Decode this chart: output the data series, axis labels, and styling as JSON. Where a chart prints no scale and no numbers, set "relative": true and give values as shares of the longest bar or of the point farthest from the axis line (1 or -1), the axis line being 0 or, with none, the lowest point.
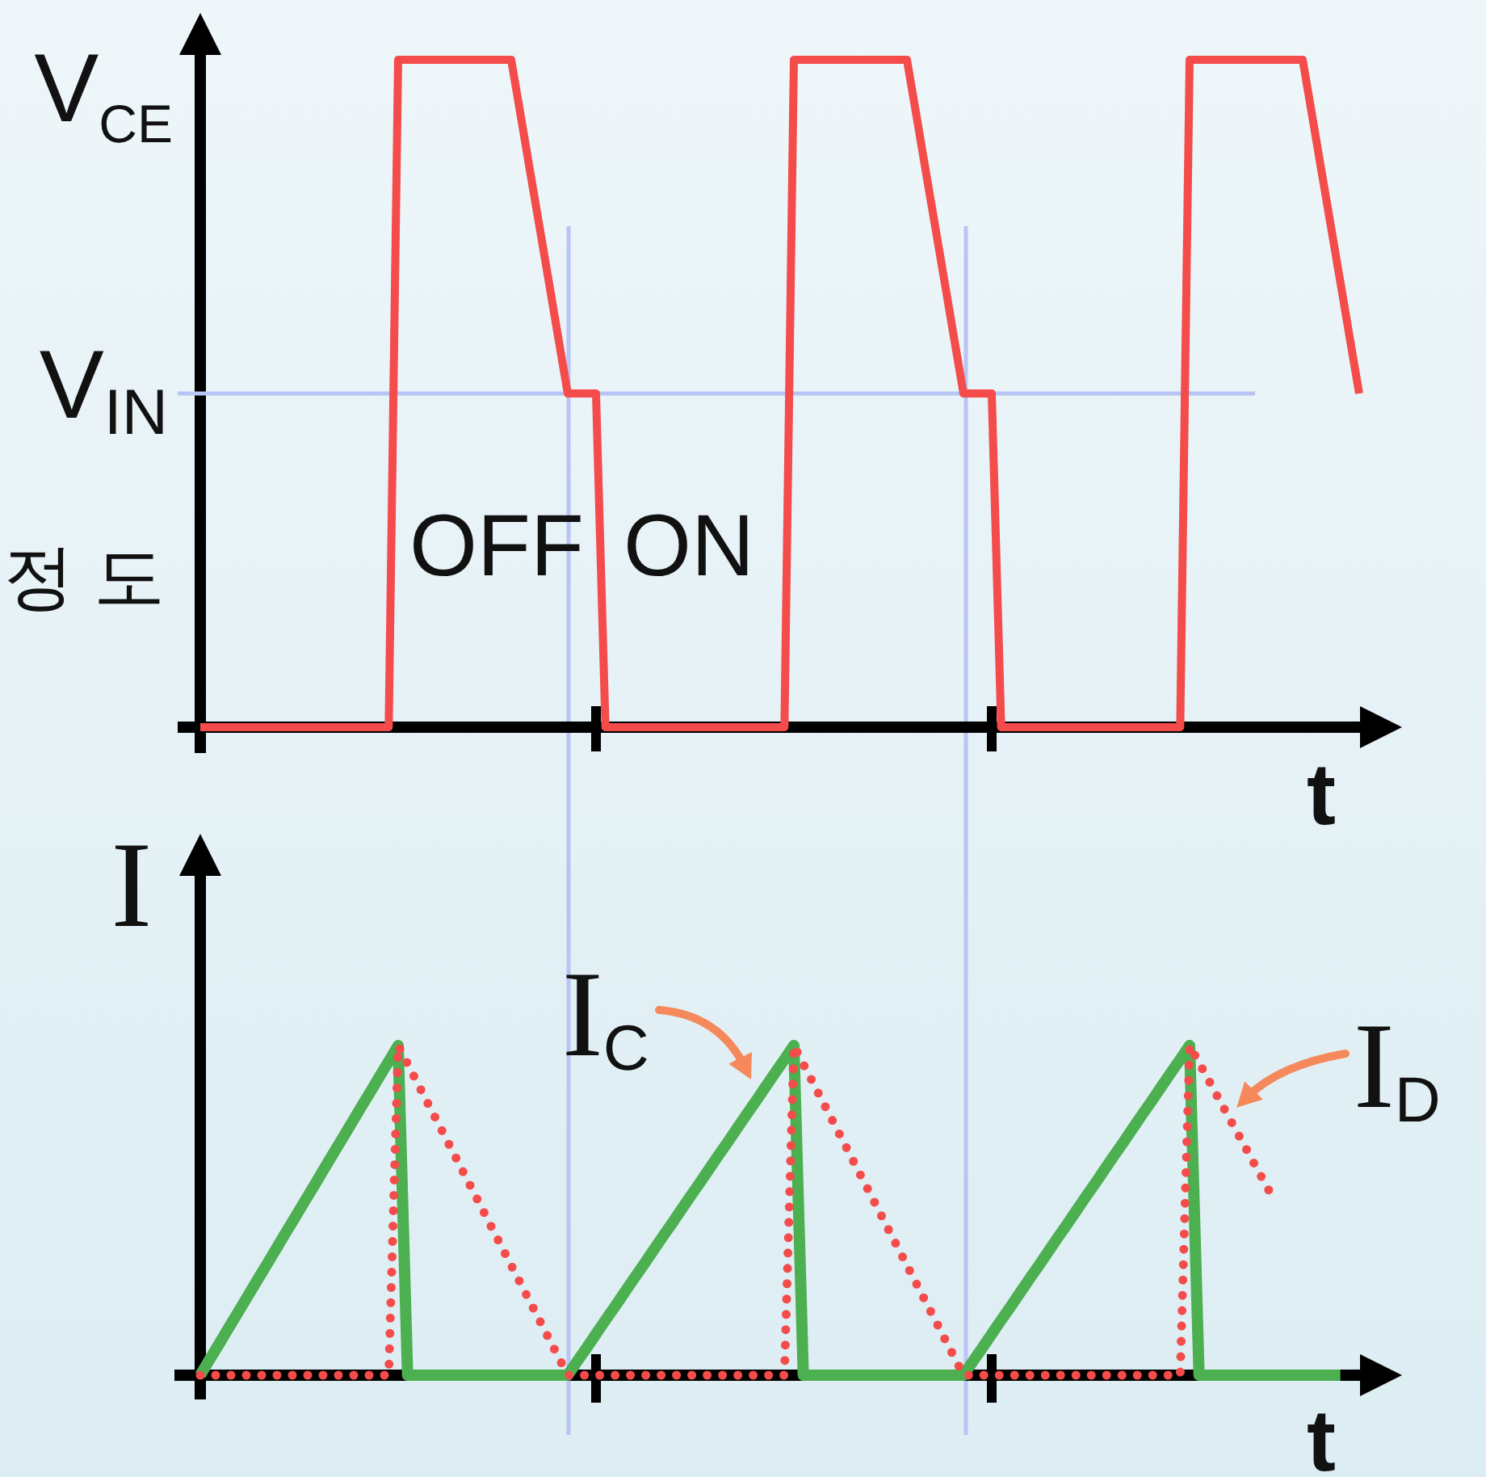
{
  "chart_data": [
    {
      "type": "line",
      "relative": true,
      "xlabel": "t",
      "categories": [
        null,
        null,
        null,
        null,
        null,
        null,
        null,
        null,
        null,
        null,
        null,
        null,
        null,
        null,
        null,
        null,
        null,
        null,
        null,
        null,
        null,
        null,
        null,
        null,
        null,
        null,
        null,
        null,
        null,
        null,
        null,
        null,
        null,
        null,
        null,
        null,
        null,
        null,
        null,
        null,
        null,
        null,
        null,
        null,
        null,
        null,
        null,
        null,
        null,
        null,
        null,
        null,
        null,
        null,
        null,
        null,
        null,
        null,
        null,
        null,
        null,
        null,
        null,
        null,
        null,
        null,
        null,
        null,
        null,
        null,
        null,
        null,
        null,
        null,
        null,
        null,
        null,
        null,
        null,
        null,
        null,
        null,
        null,
        null,
        null,
        null,
        null,
        null,
        null,
        null,
        null,
        null,
        null,
        null,
        null,
        null,
        null,
        null,
        null,
        null,
        null,
        null,
        null,
        null,
        null,
        null,
        null,
        null,
        null,
        null,
        null,
        null,
        null,
        null,
        null,
        null,
        null,
        null,
        null,
        null,
        null,
        null,
        null,
        null
      ],
      "series": [
        {
          "color": "#f44b4b",
          "values": [
            0,
            0,
            0,
            0,
            0,
            0,
            0,
            0,
            0,
            0,
            0,
            0,
            0,
            0,
            0,
            0,
            0,
            0,
            0,
            0,
            0,
            1,
            1,
            1,
            1,
            1,
            1,
            1,
            1,
            1,
            1,
            1,
            1,
            1,
            0.917,
            0.833,
            0.75,
            0.667,
            0.583,
            0.5,
            0.5,
            0.5,
            0.5,
            0,
            0,
            0,
            0,
            0,
            0,
            0,
            0,
            0,
            0,
            0,
            0,
            0,
            0,
            0,
            0,
            0,
            0,
            0,
            0,
            1,
            1,
            1,
            1,
            1,
            1,
            1,
            1,
            1,
            1,
            1,
            1,
            1,
            0.917,
            0.833,
            0.75,
            0.667,
            0.583,
            0.5,
            0.5,
            0.5,
            0.5,
            0,
            0,
            0,
            0,
            0,
            0,
            0,
            0,
            0,
            0,
            0,
            0,
            0,
            0,
            0,
            0,
            0,
            0,
            0,
            0,
            1,
            1,
            1,
            1,
            1,
            1,
            1,
            1,
            1,
            1,
            1,
            1,
            1,
            0.917,
            0.833,
            0.75,
            0.667,
            0.583,
            0.5
          ]
        }
      ],
      "ref_lines": [
        {
          "axis": "y",
          "value": 0.5,
          "label": "V$_{IN}$",
          "color": "#b8c4f4"
        }
      ],
      "annotations": [
        "V$_{CE}$",
        "OFF",
        "ON",
        "정 도"
      ]
    },
    {
      "type": "line",
      "relative": true,
      "xlabel": "t",
      "ylabel": "I",
      "categories": [
        null,
        null,
        null,
        null,
        null,
        null,
        null,
        null,
        null,
        null,
        null,
        null,
        null,
        null,
        null,
        null,
        null,
        null,
        null,
        null,
        null,
        null,
        null,
        null,
        null,
        null,
        null,
        null,
        null,
        null,
        null,
        null,
        null,
        null,
        null,
        null,
        null,
        null,
        null,
        null,
        null,
        null,
        null,
        null,
        null,
        null,
        null,
        null,
        null,
        null,
        null,
        null,
        null,
        null,
        null,
        null,
        null,
        null,
        null,
        null,
        null,
        null,
        null,
        null,
        null,
        null,
        null,
        null,
        null,
        null,
        null,
        null,
        null,
        null,
        null,
        null,
        null,
        null,
        null,
        null,
        null,
        null,
        null,
        null,
        null,
        null,
        null,
        null,
        null,
        null,
        null,
        null,
        null,
        null,
        null,
        null,
        null,
        null,
        null,
        null,
        null,
        null,
        null,
        null,
        null,
        null,
        null,
        null,
        null,
        null,
        null,
        null,
        null,
        null,
        null,
        null,
        null,
        null,
        null,
        null,
        null,
        null,
        null,
        null
      ],
      "series": [
        {
          "name": "I$_{C}$",
          "color": "#4caf50",
          "values": [
            0,
            0.048,
            0.095,
            0.143,
            0.19,
            0.238,
            0.286,
            0.333,
            0.381,
            0.429,
            0.476,
            0.524,
            0.571,
            0.619,
            0.667,
            0.714,
            0.762,
            0.81,
            0.857,
            0.905,
            0.952,
            1,
            0,
            0,
            0,
            0,
            0,
            0,
            0,
            0,
            0,
            0,
            0,
            0,
            0,
            0,
            0,
            0,
            0,
            0,
            0.042,
            0.083,
            0.125,
            0.167,
            0.208,
            0.25,
            0.292,
            0.333,
            0.375,
            0.417,
            0.458,
            0.5,
            0.542,
            0.583,
            0.625,
            0.667,
            0.708,
            0.75,
            0.792,
            0.833,
            0.875,
            0.917,
            0.958,
            1,
            0,
            0,
            0,
            0,
            0,
            0,
            0,
            0,
            0,
            0,
            0,
            0,
            0,
            0,
            0,
            0,
            0,
            0,
            0.042,
            0.083,
            0.125,
            0.167,
            0.208,
            0.25,
            0.292,
            0.333,
            0.375,
            0.417,
            0.458,
            0.5,
            0.542,
            0.583,
            0.625,
            0.667,
            0.708,
            0.75,
            0.792,
            0.833,
            0.875,
            0.917,
            0.958,
            1,
            0,
            0,
            0,
            0,
            0,
            0,
            0,
            0,
            0,
            0,
            0,
            0,
            0,
            0,
            0,
            0,
            null,
            null
          ]
        },
        {
          "name": "I$_{D}$",
          "color": "#f44b4b",
          "line_style": "dotted",
          "values": [
            0,
            0,
            0,
            0,
            0,
            0,
            0,
            0,
            0,
            0,
            0,
            0,
            0,
            0,
            0,
            0,
            0,
            0,
            0,
            0,
            0,
            1,
            0.944,
            0.889,
            0.833,
            0.778,
            0.722,
            0.667,
            0.611,
            0.556,
            0.5,
            0.444,
            0.389,
            0.333,
            0.278,
            0.222,
            0.167,
            0.111,
            0.056,
            0,
            0,
            0,
            0,
            0,
            0,
            0,
            0,
            0,
            0,
            0,
            0,
            0,
            0,
            0,
            0,
            0,
            0,
            0,
            0,
            0,
            0,
            0,
            0,
            1,
            0.944,
            0.889,
            0.833,
            0.778,
            0.722,
            0.667,
            0.611,
            0.556,
            0.5,
            0.444,
            0.389,
            0.333,
            0.278,
            0.222,
            0.167,
            0.111,
            0.056,
            0,
            0,
            0,
            0,
            0,
            0,
            0,
            0,
            0,
            0,
            0,
            0,
            0,
            0,
            0,
            0,
            0,
            0,
            0,
            0,
            0,
            0,
            0,
            0,
            1,
            0.948,
            0.896,
            0.843,
            0.791,
            0.739,
            0.687,
            0.634,
            0.582,
            0.53,
            null,
            null,
            null,
            null,
            null,
            null,
            null,
            null,
            null
          ]
        }
      ]
    }
  ]
}
